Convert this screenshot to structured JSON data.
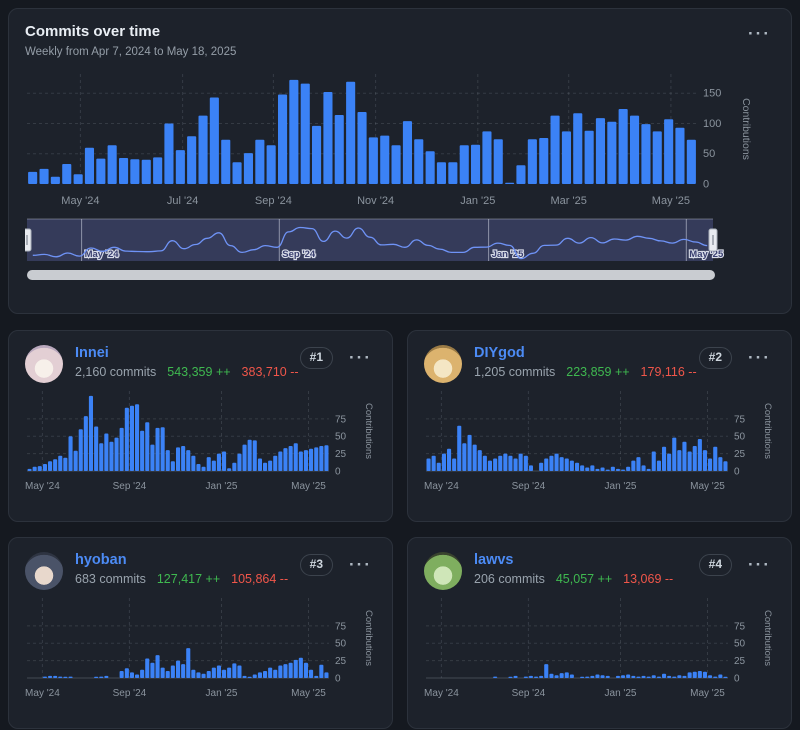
{
  "header": {
    "title": "Commits over time",
    "subtitle": "Weekly from Apr 7, 2024 to May 18, 2025"
  },
  "icons": {
    "more_menu": "···"
  },
  "colors": {
    "bar": "#3b82f6",
    "brush_fill": "rgba(108,120,200,0.30)",
    "brush_line": "#6f93f6",
    "brush_tick": "rgba(215,220,233,0.55)",
    "brush_label_fill": "#3a4070",
    "brush_label_stroke": "#d9dde8",
    "green": "#3fb950",
    "red": "#f0564a",
    "link": "#4c8bf5"
  },
  "brush": {
    "x_tick_labels": [
      "May '24",
      "Sep '24",
      "Jan '25",
      "May '25"
    ],
    "x_tick_weeks": [
      4.2,
      21.2,
      39.2,
      56.2
    ]
  },
  "cards": [
    {
      "name": "Innei",
      "commits": "2,160 commits",
      "additions": "543,359 ++",
      "deletions": "383,710 --",
      "rank": "#1",
      "avatar_colors": [
        "#f7f0ea",
        "#e3cfd4",
        "#b9a8bd"
      ]
    },
    {
      "name": "DIYgod",
      "commits": "1,205 commits",
      "additions": "223,859 ++",
      "deletions": "179,116 --",
      "rank": "#2",
      "avatar_colors": [
        "#f4e6c4",
        "#dcb36e",
        "#9a7b46"
      ]
    },
    {
      "name": "hyoban",
      "commits": "683 commits",
      "additions": "127,417 ++",
      "deletions": "105,864 --",
      "rank": "#3",
      "avatar_colors": [
        "#e8d8cc",
        "#4a5368",
        "#2e3442"
      ]
    },
    {
      "name": "lawvs",
      "commits": "206 commits",
      "additions": "45,057 ++",
      "deletions": "13,069 --",
      "rank": "#4",
      "avatar_colors": [
        "#cfe6b8",
        "#7fae5f",
        "#39442e"
      ]
    }
  ],
  "chart_data": [
    {
      "id": "main",
      "type": "bar",
      "title": "Commits over time",
      "xlabel": "",
      "ylabel": "Contributions",
      "ylim": [
        0,
        175
      ],
      "yticks": [
        0,
        50,
        100,
        150
      ],
      "grid": true,
      "legend": "none",
      "x_tick_labels": [
        "May '24",
        "Jul '24",
        "Sep '24",
        "Nov '24",
        "Jan '25",
        "Mar '25",
        "May '25"
      ],
      "x_tick_weeks": [
        4.2,
        13.2,
        21.2,
        30.2,
        39.2,
        47.2,
        56.2
      ],
      "values": [
        20,
        25,
        12,
        33,
        16,
        60,
        42,
        64,
        43,
        41,
        40,
        44,
        100,
        56,
        79,
        113,
        143,
        73,
        36,
        51,
        73,
        64,
        148,
        172,
        166,
        96,
        152,
        114,
        169,
        119,
        77,
        80,
        64,
        104,
        74,
        54,
        36,
        36,
        64,
        65,
        87,
        74,
        2,
        31,
        74,
        76,
        113,
        87,
        117,
        88,
        109,
        103,
        124,
        113,
        99,
        87,
        107,
        93,
        73
      ]
    },
    {
      "id": "innei",
      "type": "bar",
      "title": "Innei weekly commits",
      "xlabel": "",
      "ylabel": "Contributions",
      "ylim": [
        0,
        110
      ],
      "yticks": [
        0,
        25,
        50,
        75
      ],
      "grid": true,
      "x_tick_labels": [
        "May '24",
        "Sep '24",
        "Jan '25",
        "May '25"
      ],
      "x_tick_weeks": [
        2.5,
        19.5,
        37.5,
        54.5
      ],
      "values": [
        3,
        6,
        7,
        10,
        14,
        17,
        22,
        19,
        50,
        29,
        60,
        79,
        108,
        64,
        40,
        54,
        42,
        48,
        62,
        91,
        94,
        96,
        58,
        70,
        38,
        62,
        63,
        30,
        14,
        34,
        36,
        30,
        22,
        10,
        6,
        20,
        15,
        25,
        28,
        4,
        12,
        25,
        38,
        45,
        44,
        18,
        12,
        15,
        22,
        28,
        33,
        36,
        40,
        28,
        30,
        32,
        34,
        36,
        37
      ]
    },
    {
      "id": "diygod",
      "type": "bar",
      "title": "DIYgod weekly commits",
      "xlabel": "",
      "ylabel": "Contributions",
      "ylim": [
        0,
        110
      ],
      "yticks": [
        0,
        25,
        50,
        75
      ],
      "grid": true,
      "x_tick_labels": [
        "May '24",
        "Sep '24",
        "Jan '25",
        "May '25"
      ],
      "x_tick_weeks": [
        2.5,
        19.5,
        37.5,
        54.5
      ],
      "values": [
        18,
        22,
        12,
        25,
        32,
        18,
        65,
        40,
        52,
        38,
        30,
        22,
        15,
        18,
        22,
        25,
        22,
        18,
        25,
        22,
        8,
        0,
        12,
        18,
        22,
        25,
        20,
        18,
        15,
        12,
        8,
        5,
        8,
        3,
        5,
        2,
        6,
        3,
        2,
        6,
        15,
        20,
        8,
        3,
        28,
        15,
        35,
        25,
        48,
        30,
        42,
        28,
        36,
        46,
        30,
        18,
        35,
        20,
        14
      ]
    },
    {
      "id": "hyoban",
      "type": "bar",
      "title": "hyoban weekly commits",
      "xlabel": "",
      "ylabel": "Contributions",
      "ylim": [
        0,
        110
      ],
      "yticks": [
        0,
        25,
        50,
        75
      ],
      "grid": true,
      "x_tick_labels": [
        "May '24",
        "Sep '24",
        "Jan '25",
        "May '25"
      ],
      "x_tick_weeks": [
        2.5,
        19.5,
        37.5,
        54.5
      ],
      "values": [
        0,
        0,
        0,
        2,
        3,
        3,
        2,
        1,
        2,
        0,
        0,
        0,
        0,
        1,
        2,
        3,
        0,
        0,
        10,
        14,
        8,
        5,
        12,
        28,
        22,
        33,
        15,
        10,
        18,
        25,
        20,
        43,
        12,
        8,
        6,
        10,
        15,
        18,
        12,
        15,
        21,
        18,
        3,
        1,
        5,
        8,
        10,
        15,
        12,
        18,
        20,
        22,
        26,
        29,
        22,
        12,
        3,
        19,
        8
      ]
    },
    {
      "id": "lawvs",
      "type": "bar",
      "title": "lawvs weekly commits",
      "xlabel": "",
      "ylabel": "Contributions",
      "ylim": [
        0,
        110
      ],
      "yticks": [
        0,
        25,
        50,
        75
      ],
      "grid": true,
      "x_tick_labels": [
        "May '24",
        "Sep '24",
        "Jan '25",
        "May '25"
      ],
      "x_tick_weeks": [
        2.5,
        19.5,
        37.5,
        54.5
      ],
      "values": [
        0,
        0,
        0,
        0,
        0,
        0,
        0,
        0,
        0,
        0,
        0,
        0,
        0,
        2,
        0,
        0,
        1,
        3,
        0,
        2,
        3,
        2,
        3,
        20,
        6,
        4,
        7,
        8,
        5,
        0,
        1,
        2,
        3,
        5,
        4,
        3,
        0,
        3,
        4,
        5,
        3,
        2,
        3,
        2,
        4,
        2,
        6,
        3,
        2,
        4,
        3,
        8,
        9,
        10,
        9,
        4,
        2,
        5,
        1
      ]
    }
  ]
}
